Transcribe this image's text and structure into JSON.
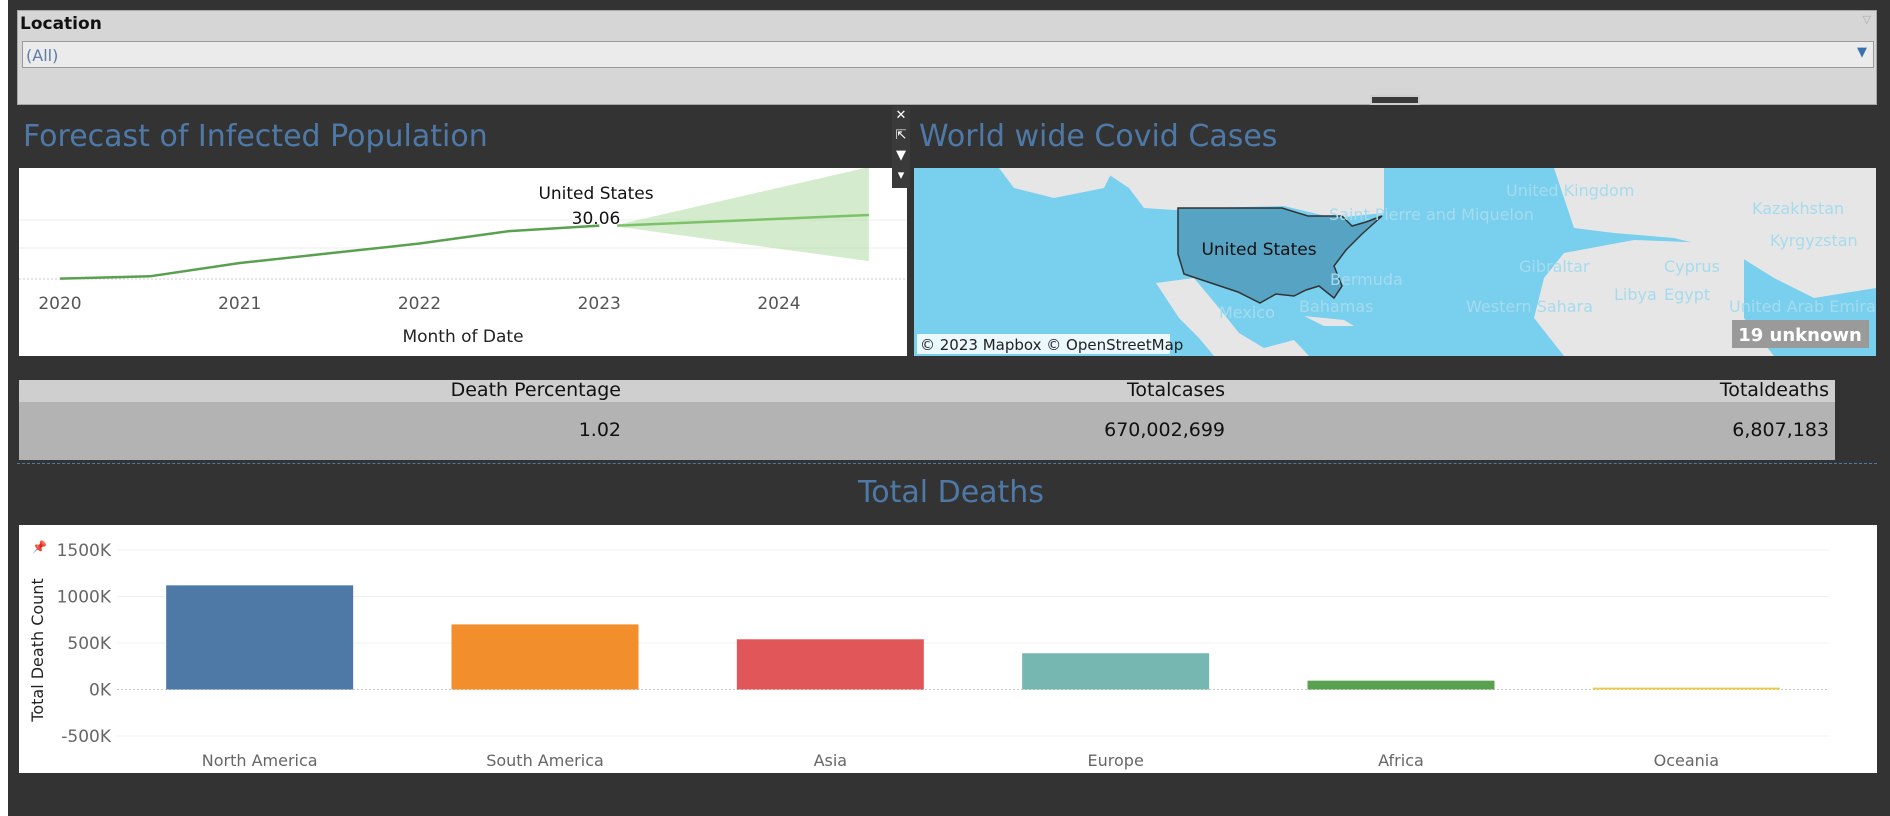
{
  "filter": {
    "title": "Location",
    "value": "(All)"
  },
  "forecast": {
    "title": "Forecast of Infected Population",
    "xlabel": "Month of Date",
    "years": [
      "2020",
      "2021",
      "2022",
      "2023",
      "2024"
    ],
    "tooltip": {
      "location": "United States",
      "value": "30.06"
    }
  },
  "map": {
    "title": "World wide Covid Cases",
    "highlight": "United States",
    "attribution": "© 2023 Mapbox © OpenStreetMap",
    "unknown_badge": "19 unknown",
    "place_labels": [
      "Saint Pierre and Miquelon",
      "Bermuda",
      "Bahamas",
      "Mexico",
      "Western Sahara",
      "United Kingdom",
      "Kazakhstan",
      "Kyrgyzstan",
      "Gibraltar",
      "Cyprus",
      "Libya",
      "Egypt",
      "United Arab Emirates"
    ]
  },
  "kpi": {
    "headers": [
      "Death Percentage",
      "Totalcases",
      "Totaldeaths"
    ],
    "values": [
      "1.02",
      "670,002,699",
      "6,807,183"
    ]
  },
  "deaths": {
    "title": "Total Deaths",
    "ylabel": "Total Death Count",
    "yticks": [
      "1500K",
      "1000K",
      "500K",
      "0K",
      "-500K"
    ]
  },
  "chart_data": [
    {
      "type": "line",
      "title": "Forecast of Infected Population",
      "xlabel": "Month of Date",
      "ylabel": "",
      "x": [
        "2020-01",
        "2020-07",
        "2021-01",
        "2021-07",
        "2022-01",
        "2022-07",
        "2023-01"
      ],
      "series": [
        {
          "name": "",
          "values": [
            0.2,
            1.5,
            9.0,
            14.5,
            20.0,
            27.0,
            30.06
          ]
        }
      ],
      "forecast_start": "2023-01",
      "forecast_end": "2024-07"
    },
    {
      "type": "bar",
      "title": "Total Deaths",
      "xlabel": "",
      "ylabel": "Total Death Count",
      "categories": [
        "North America",
        "South America",
        "Asia",
        "Europe",
        "Africa",
        "Oceania"
      ],
      "values": [
        1120000,
        700000,
        540000,
        390000,
        95000,
        20000
      ],
      "colors": [
        "#4e79a7",
        "#f28e2b",
        "#e15759",
        "#76b7b2",
        "#59a14f",
        "#edc948"
      ],
      "ylim": [
        -500000,
        1500000
      ]
    }
  ]
}
